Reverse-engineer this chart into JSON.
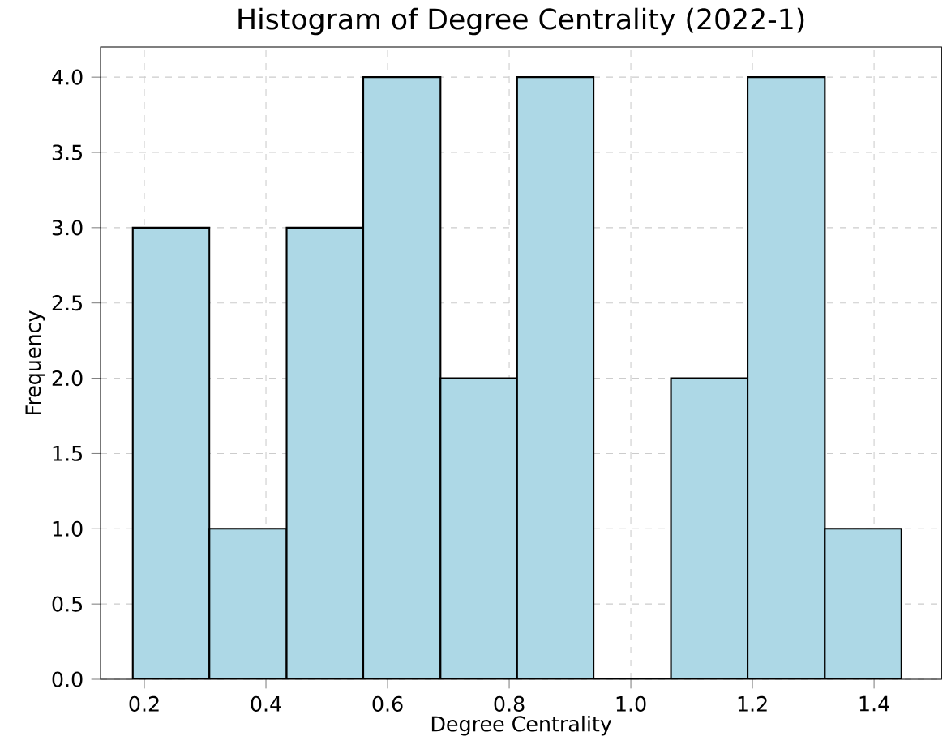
{
  "chart_data": {
    "type": "histogram",
    "title": "Histogram of Degree Centrality (2022-1)",
    "xlabel": "Degree Centrality",
    "ylabel": "Frequency",
    "bins": [
      0.181,
      0.307,
      0.434,
      0.56,
      0.687,
      0.813,
      0.939,
      1.066,
      1.192,
      1.319,
      1.445
    ],
    "values": [
      3,
      1,
      3,
      4,
      2,
      4,
      0,
      2,
      4,
      1
    ],
    "color": "#add8e6",
    "xlim": [
      0.128,
      1.511
    ],
    "ylim": [
      0,
      4.2
    ],
    "xticks": [
      0.2,
      0.4,
      0.6,
      0.8,
      {
        "value": 1,
        "label": "1.0"
      },
      1.2,
      1.4
    ],
    "yticks": [
      {
        "value": 0,
        "label": "0.0"
      },
      {
        "value": 0.5,
        "label": "0.5"
      },
      {
        "value": 1,
        "label": "1.0"
      },
      {
        "value": 1.5,
        "label": "1.5"
      },
      {
        "value": 2,
        "label": "2.0"
      },
      {
        "value": 2.5,
        "label": "2.5"
      },
      {
        "value": 3,
        "label": "3.0"
      },
      {
        "value": 3.5,
        "label": "3.5"
      },
      {
        "value": 4,
        "label": "4.0"
      }
    ],
    "grid": true
  }
}
